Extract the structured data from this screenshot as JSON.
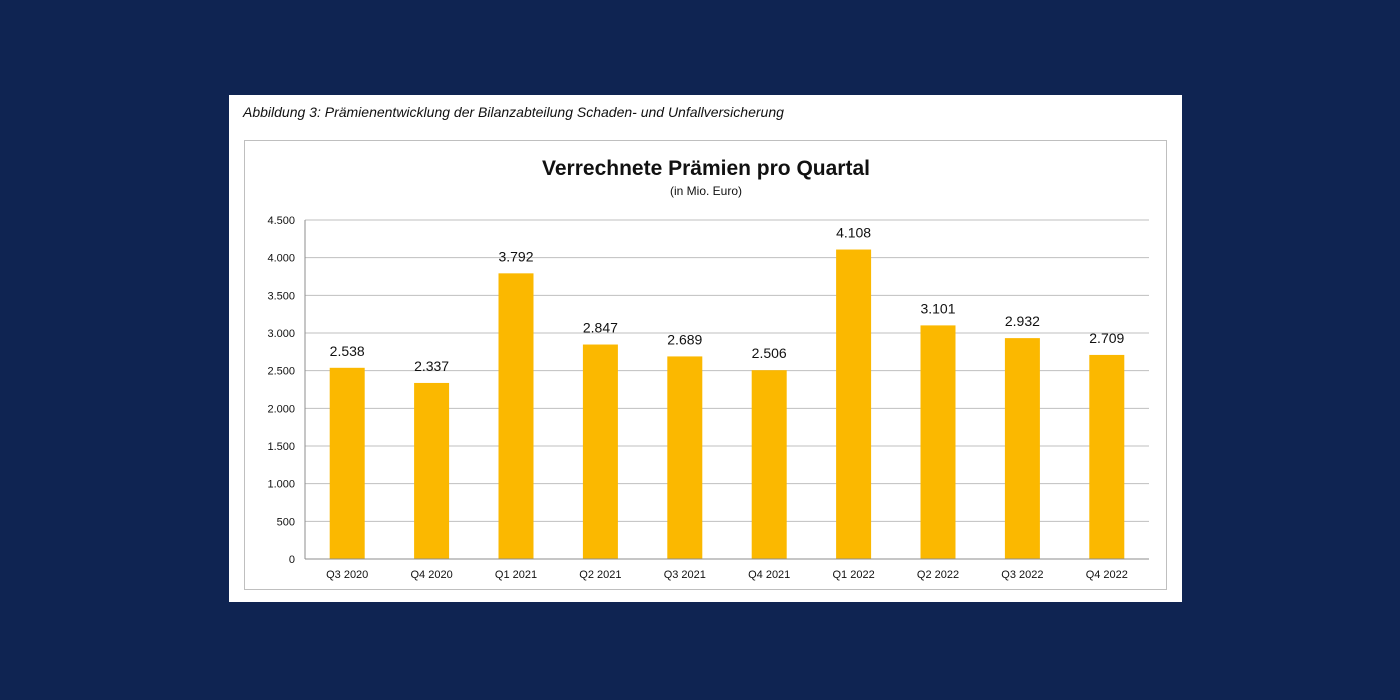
{
  "caption": "Abbildung 3: Prämienentwicklung der Bilanzabteilung Schaden- und Unfallversicherung",
  "colors": {
    "background": "#0f2452",
    "bar": "#fbb800",
    "grid": "#bfbfbf"
  },
  "chart_data": {
    "type": "bar",
    "title": "Verrechnete Prämien pro Quartal",
    "subtitle": "(in Mio. Euro)",
    "xlabel": "",
    "ylabel": "",
    "categories": [
      "Q3 2020",
      "Q4 2020",
      "Q1 2021",
      "Q2 2021",
      "Q3 2021",
      "Q4 2021",
      "Q1 2022",
      "Q2 2022",
      "Q3 2022",
      "Q4 2022"
    ],
    "values": [
      2538,
      2337,
      3792,
      2847,
      2689,
      2506,
      4108,
      3101,
      2932,
      2709
    ],
    "value_labels": [
      "2.538",
      "2.337",
      "3.792",
      "2.847",
      "2.689",
      "2.506",
      "4.108",
      "3.101",
      "2.932",
      "2.709"
    ],
    "yticks": [
      0,
      500,
      1000,
      1500,
      2000,
      2500,
      3000,
      3500,
      4000,
      4500
    ],
    "ytick_labels": [
      "0",
      "500",
      "1.000",
      "1.500",
      "2.000",
      "2.500",
      "3.000",
      "3.500",
      "4.000",
      "4.500"
    ],
    "ylim": [
      0,
      4500
    ],
    "grid": true,
    "legend": "none"
  }
}
